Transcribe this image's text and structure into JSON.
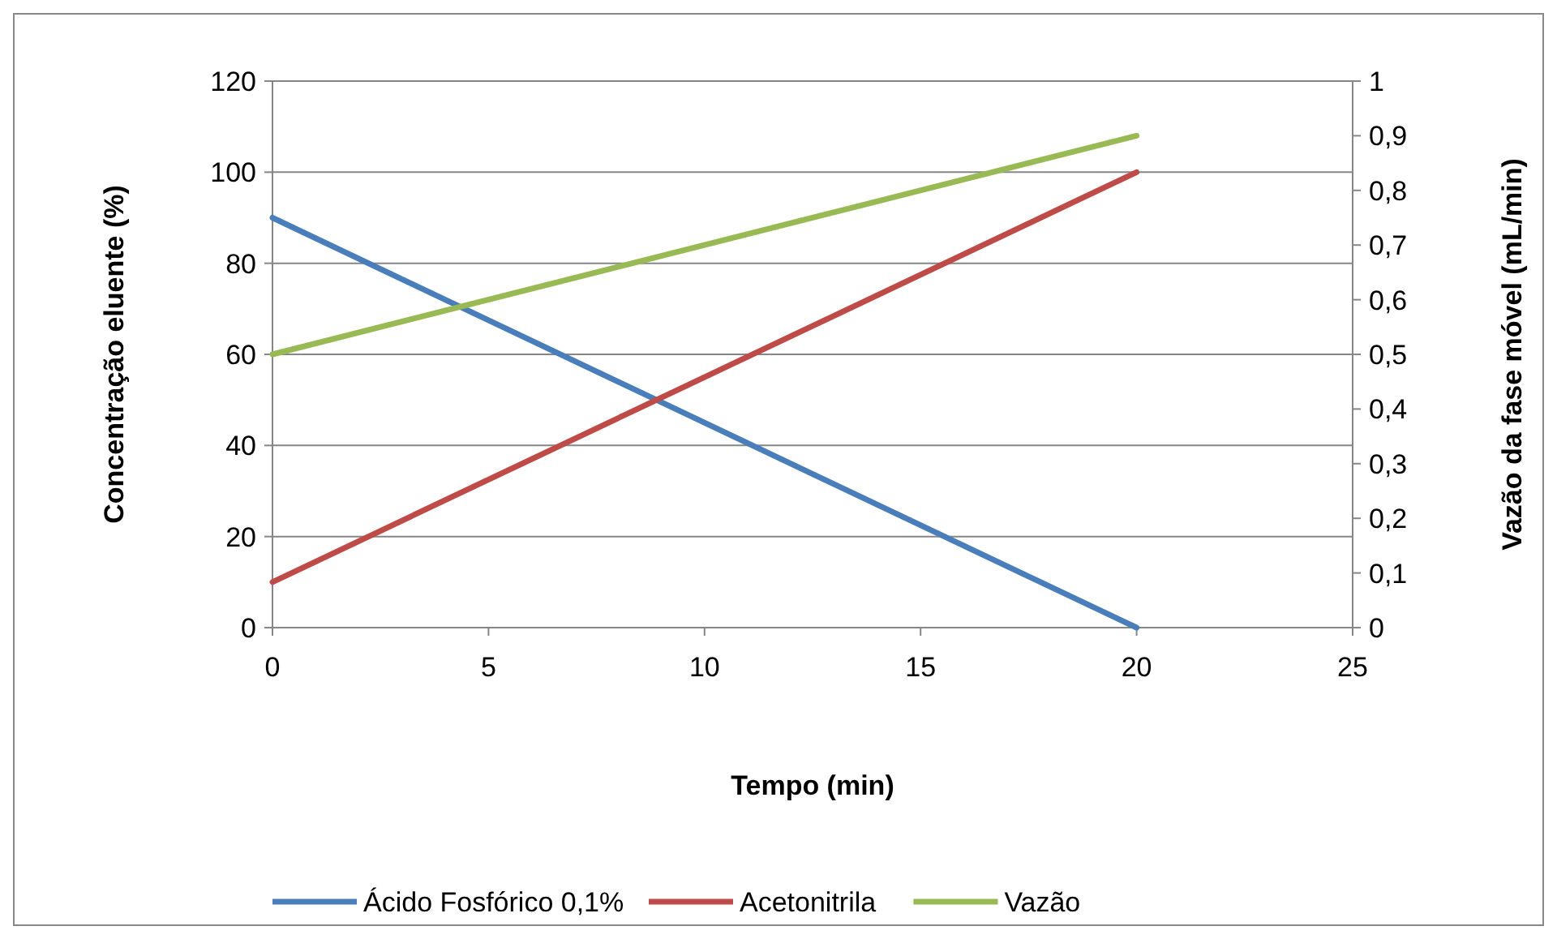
{
  "chart_data": {
    "type": "line",
    "xlabel": "Tempo (min)",
    "ylabel": "Concentração eluente (%)",
    "y2label": "Vazão da fase móvel (mL/min)",
    "xlim": [
      0,
      25
    ],
    "xticks": [
      0,
      5,
      10,
      15,
      20,
      25
    ],
    "ylim": [
      0,
      120
    ],
    "yticks": [
      0,
      20,
      40,
      60,
      80,
      100,
      120
    ],
    "y2lim": [
      0,
      1
    ],
    "y2ticks": [
      0,
      {
        "value": 0.1,
        "label": "0,1"
      },
      {
        "value": 0.2,
        "label": "0,2"
      },
      {
        "value": 0.3,
        "label": "0,3"
      },
      {
        "value": 0.4,
        "label": "0,4"
      },
      {
        "value": 0.5,
        "label": "0,5"
      },
      {
        "value": 0.6,
        "label": "0,6"
      },
      {
        "value": 0.7,
        "label": "0,7"
      },
      {
        "value": 0.8,
        "label": "0,8"
      },
      {
        "value": 0.9,
        "label": "0,9"
      },
      1
    ],
    "x": [
      0,
      20
    ],
    "grid": "y",
    "legend": "bottom",
    "marker": "none",
    "line_style": "solid",
    "series": [
      {
        "name": "Ácido Fosfórico 0,1%",
        "color": "#4a7ebb",
        "values": [
          90,
          0
        ]
      },
      {
        "name": "Acetonitrila",
        "color": "#be4b48",
        "values": [
          10,
          100
        ]
      },
      {
        "name": "Vazão",
        "color": "#98b954",
        "values": [
          0.5,
          0.9
        ],
        "axis": "y2"
      }
    ]
  }
}
